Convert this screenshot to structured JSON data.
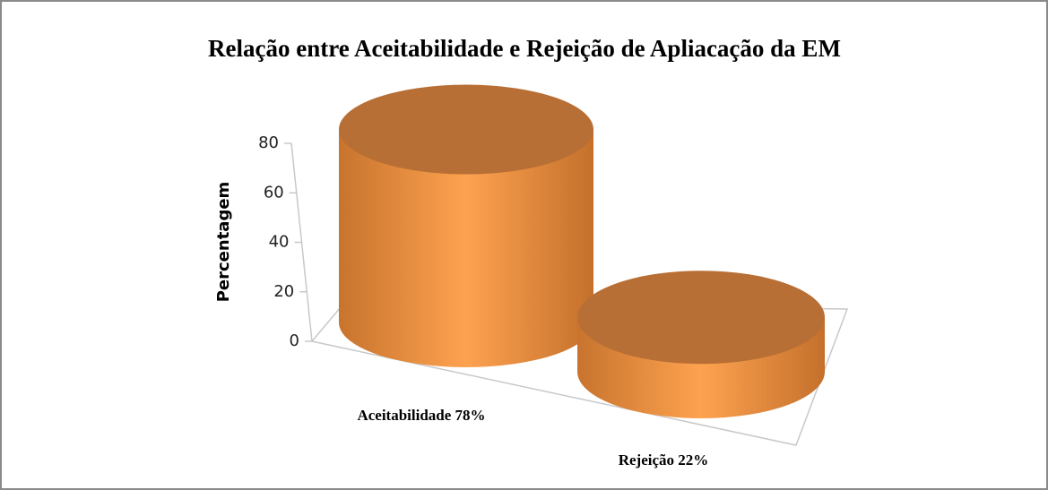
{
  "chart_data": {
    "type": "bar",
    "title": "Relação entre Aceitabilidade e Rejeição de Apliacação da EM",
    "ylabel": "Percentagem",
    "categories": [
      "Aceitabilidade 78%",
      "Rejeição 22%"
    ],
    "values": [
      78,
      22
    ],
    "color": "#f79646",
    "ylim": [
      0,
      80
    ],
    "yticks": [
      0,
      20,
      40,
      60,
      80
    ]
  }
}
